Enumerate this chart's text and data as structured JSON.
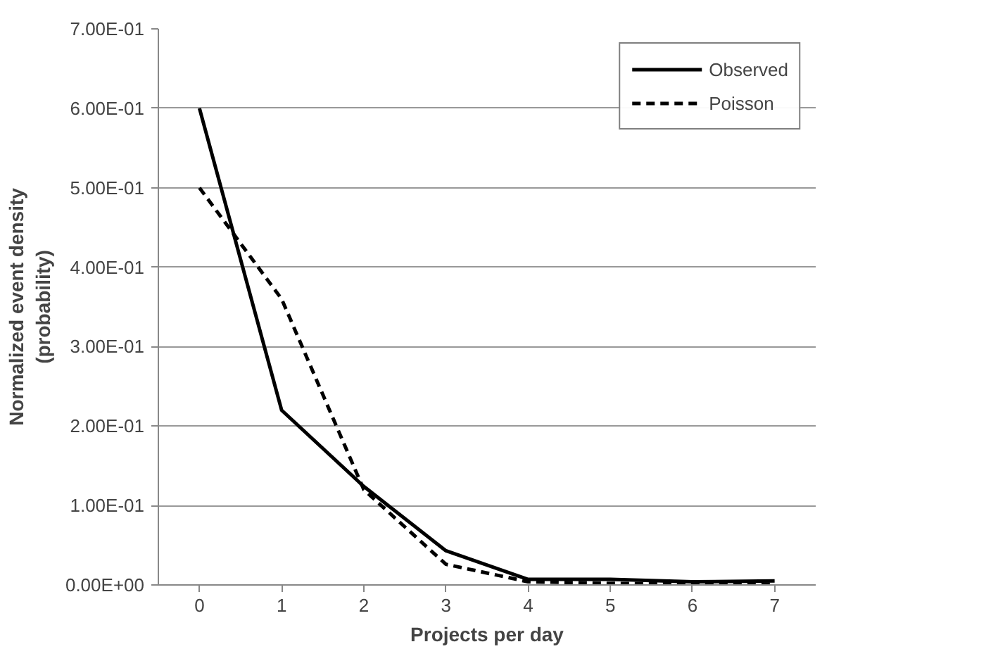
{
  "chart_data": {
    "type": "line",
    "xlabel": "Projects per day",
    "ylabel": "Normalized event density\n(probability)",
    "categories": [
      "0",
      "1",
      "2",
      "3",
      "4",
      "5",
      "6",
      "7"
    ],
    "series": [
      {
        "name": "Observed",
        "color": "#000000",
        "line_style": "solid",
        "values": [
          0.6,
          0.22,
          0.124,
          0.043,
          0.007,
          0.007,
          0.004,
          0.005
        ]
      },
      {
        "name": "Poisson",
        "color": "#000000",
        "line_style": "dashed",
        "values": [
          0.5,
          0.36,
          0.12,
          0.026,
          0.004,
          0.002,
          0.001,
          0.001
        ]
      }
    ],
    "ylim": [
      0,
      0.7
    ],
    "yticks": [
      {
        "value": 0,
        "label": "0.00E+00"
      },
      {
        "value": 0.1,
        "label": "1.00E-01"
      },
      {
        "value": 0.2,
        "label": "2.00E-01"
      },
      {
        "value": 0.3,
        "label": "3.00E-01"
      },
      {
        "value": 0.4,
        "label": "4.00E-01"
      },
      {
        "value": 0.5,
        "label": "5.00E-01"
      },
      {
        "value": 0.6,
        "label": "6.00E-01"
      },
      {
        "value": 0.7,
        "label": "7.00E-01"
      }
    ],
    "grid": "y",
    "legend": "top right",
    "marker": "none"
  }
}
